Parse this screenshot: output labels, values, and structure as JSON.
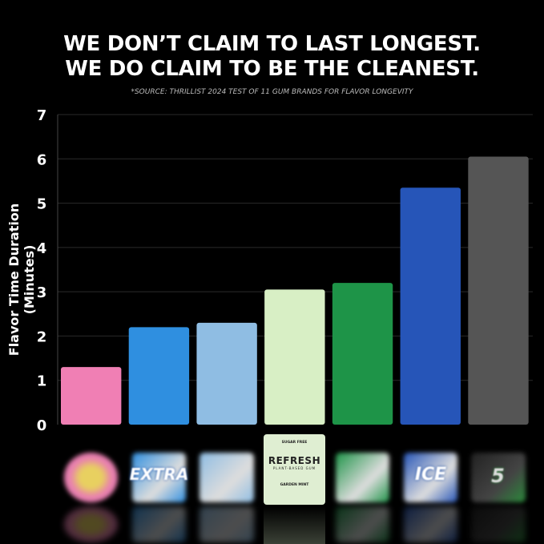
{
  "chart_data": {
    "type": "bar",
    "title": "WE DON’T CLAIM TO LAST LONGEST.\nWE DO CLAIM TO BE THE CLEANEST.",
    "title_lines": [
      "WE DON’T CLAIM TO LAST LONGEST.",
      "WE DO CLAIM TO BE THE CLEANEST."
    ],
    "subtitle": "*SOURCE: THRILLIST 2024 TEST OF 11 GUM BRANDS FOR FLAVOR LONGEVITY",
    "ylabel": "Flavor Time Duration (Minutes)",
    "xlabel": "",
    "ylim": [
      0,
      7
    ],
    "yticks": [
      0,
      1,
      2,
      3,
      4,
      5,
      6,
      7
    ],
    "grid": true,
    "values": [
      1.3,
      2.2,
      2.3,
      3.05,
      3.2,
      5.35,
      6.05
    ],
    "colors": [
      "#f07fb4",
      "#2f8fe0",
      "#8fbde3",
      "#d8efc5",
      "#1e9448",
      "#2655b8",
      "#555555"
    ],
    "category_images": [
      "pink-gum-tin",
      "extra-pack",
      "trident-pack",
      "refresh-pack",
      "orbit-pack",
      "ice-breakers-pack",
      "5-gum-pack"
    ]
  },
  "refresh_pack": {
    "top": "SUGAR FREE",
    "brand": "REFRESH",
    "tagline": "PLANT-BASED GUM",
    "flavor": "GARDEN MINT"
  },
  "package_logos": [
    "EXTRA",
    "ICE",
    "5"
  ]
}
